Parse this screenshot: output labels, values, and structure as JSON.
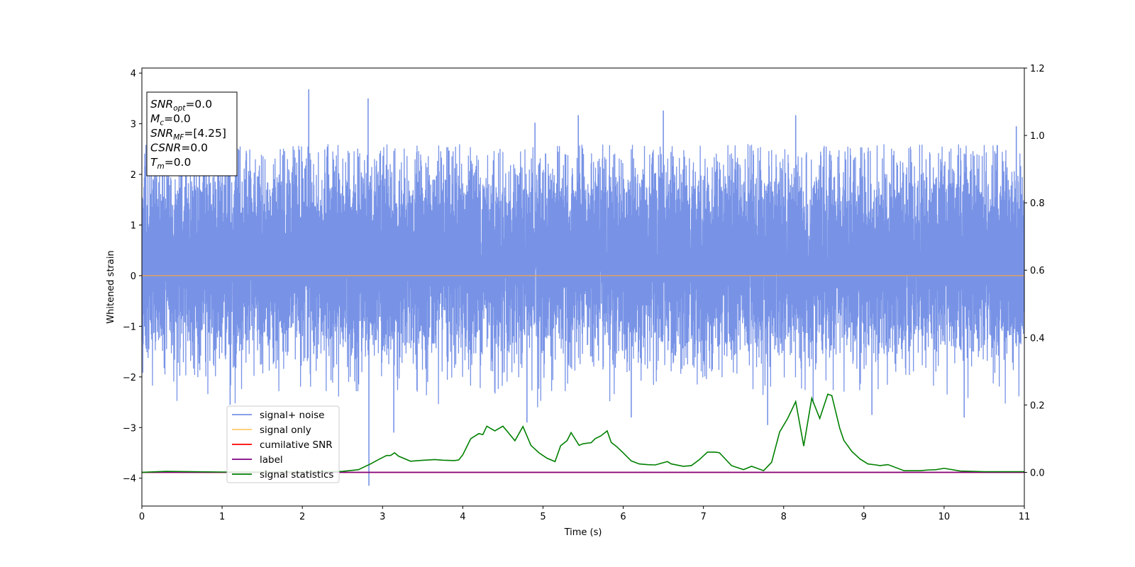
{
  "chart_data": {
    "type": "line",
    "xlabel": "Time (s)",
    "ylabel": "Whitened strain",
    "xlim": [
      0,
      11
    ],
    "ylim_left": [
      -4.55,
      4.1
    ],
    "ylim_right": [
      -0.1,
      1.2
    ],
    "x_ticks": [
      0,
      1,
      2,
      3,
      4,
      5,
      6,
      7,
      8,
      9,
      10,
      11
    ],
    "x_tick_labels": [
      "0",
      "1",
      "2",
      "3",
      "4",
      "5",
      "6",
      "7",
      "8",
      "9",
      "10",
      "11"
    ],
    "y_left_ticks": [
      4,
      3,
      2,
      1,
      0,
      -1,
      -2,
      -3,
      -4
    ],
    "y_left_tick_labels": [
      "4",
      "3",
      "2",
      "1",
      "0",
      "−1",
      "−2",
      "−3",
      "−4"
    ],
    "y_right_ticks": [
      1.2,
      1.0,
      0.8,
      0.6,
      0.4,
      0.2,
      0.0
    ],
    "y_right_tick_labels": [
      "1.2",
      "1.0",
      "0.8",
      "0.6",
      "0.4",
      "0.2",
      "0.0"
    ],
    "grid": false,
    "legend_position": "lower-left",
    "info_box": {
      "lines": [
        {
          "main": "SNR",
          "sub": "opt",
          "value": "=0.0"
        },
        {
          "main": "M",
          "sub": "c",
          "value": "=0.0"
        },
        {
          "main": "SNR",
          "sub": "MF",
          "value": "=[4.25]"
        },
        {
          "main": "CSNR",
          "sub": "",
          "value": "=0.0"
        },
        {
          "main": "T",
          "sub": "m",
          "value": "=0.0"
        }
      ]
    },
    "series": [
      {
        "name": "signal+ noise",
        "axis": "left",
        "color": "#7893e6",
        "kind": "noise",
        "description_values": {
          "typical_range": [
            -1.6,
            2.4
          ],
          "min": -4.15,
          "max": 3.68
        },
        "spikes": [
          {
            "x": 2.08,
            "y": 3.68
          },
          {
            "x": 2.82,
            "y": 3.5
          },
          {
            "x": 2.83,
            "y": -4.15
          },
          {
            "x": 5.44,
            "y": 3.17
          },
          {
            "x": 6.5,
            "y": 3.26
          },
          {
            "x": 8.15,
            "y": 3.17
          },
          {
            "x": 4.9,
            "y": 3.02
          },
          {
            "x": 10.9,
            "y": 2.95
          },
          {
            "x": 3.14,
            "y": -3.1
          },
          {
            "x": 4.8,
            "y": -2.9
          },
          {
            "x": 7.8,
            "y": -2.95
          },
          {
            "x": 10.25,
            "y": -2.8
          },
          {
            "x": 9.1,
            "y": -2.75
          },
          {
            "x": 1.1,
            "y": -2.55
          },
          {
            "x": 6.1,
            "y": -2.8
          }
        ]
      },
      {
        "name": "signal only",
        "axis": "left",
        "color": "#ffc868",
        "x": [
          0,
          11
        ],
        "y": [
          0,
          0
        ]
      },
      {
        "name": "cumilative SNR",
        "axis": "right",
        "color": "#ff0000",
        "x": [
          0,
          11
        ],
        "y": [
          0,
          0
        ]
      },
      {
        "name": "label",
        "axis": "right",
        "color": "#800080",
        "x": [
          0,
          11
        ],
        "y": [
          0,
          0
        ]
      },
      {
        "name": "signal statistics",
        "axis": "right",
        "color": "#008000",
        "x": [
          0,
          0.3,
          1.0,
          2.0,
          2.5,
          2.7,
          2.85,
          2.95,
          3.05,
          3.1,
          3.15,
          3.2,
          3.35,
          3.45,
          3.65,
          3.75,
          3.9,
          3.95,
          4.0,
          4.1,
          4.2,
          4.25,
          4.3,
          4.4,
          4.5,
          4.55,
          4.65,
          4.75,
          4.85,
          4.95,
          5.05,
          5.15,
          5.22,
          5.3,
          5.35,
          5.45,
          5.5,
          5.6,
          5.65,
          5.72,
          5.8,
          5.85,
          5.92,
          6.0,
          6.1,
          6.2,
          6.3,
          6.4,
          6.55,
          6.6,
          6.75,
          6.85,
          6.95,
          7.05,
          7.15,
          7.2,
          7.35,
          7.5,
          7.6,
          7.75,
          7.85,
          7.95,
          8.05,
          8.15,
          8.25,
          8.35,
          8.45,
          8.55,
          8.6,
          8.7,
          8.75,
          8.85,
          8.95,
          9.05,
          9.15,
          9.2,
          9.3,
          9.5,
          9.7,
          9.8,
          9.9,
          10.0,
          10.2,
          10.5,
          11.0
        ],
        "y": [
          0.0,
          0.003,
          0.001,
          0.001,
          0.003,
          0.008,
          0.025,
          0.038,
          0.05,
          0.05,
          0.058,
          0.048,
          0.033,
          0.035,
          0.038,
          0.036,
          0.035,
          0.037,
          0.052,
          0.1,
          0.115,
          0.112,
          0.137,
          0.123,
          0.137,
          0.123,
          0.094,
          0.136,
          0.08,
          0.058,
          0.042,
          0.032,
          0.079,
          0.094,
          0.118,
          0.08,
          0.085,
          0.088,
          0.1,
          0.108,
          0.123,
          0.089,
          0.076,
          0.058,
          0.034,
          0.025,
          0.023,
          0.022,
          0.032,
          0.025,
          0.018,
          0.02,
          0.038,
          0.06,
          0.06,
          0.058,
          0.02,
          0.008,
          0.018,
          0.005,
          0.03,
          0.12,
          0.16,
          0.21,
          0.078,
          0.22,
          0.16,
          0.232,
          0.228,
          0.13,
          0.095,
          0.062,
          0.04,
          0.025,
          0.022,
          0.02,
          0.023,
          0.005,
          0.005,
          0.007,
          0.008,
          0.012,
          0.004,
          0.002,
          0.002
        ]
      }
    ]
  }
}
